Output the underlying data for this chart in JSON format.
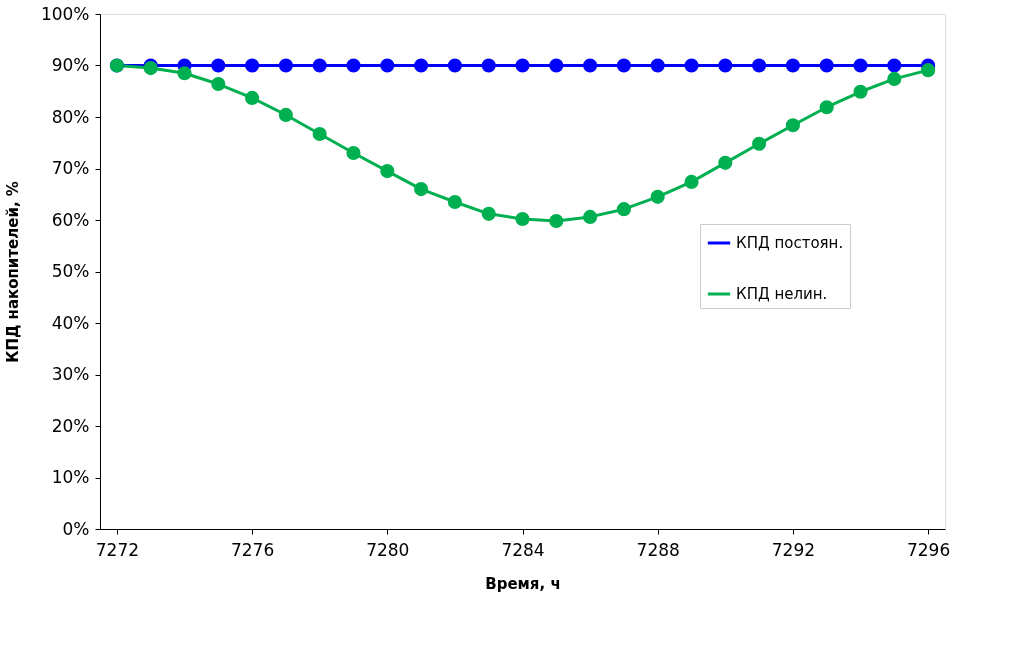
{
  "chart_data": {
    "type": "line",
    "xlabel": "Время, ч",
    "ylabel": "КПД накопителей, %",
    "x": [
      7272,
      7273,
      7274,
      7275,
      7276,
      7277,
      7278,
      7279,
      7280,
      7281,
      7282,
      7283,
      7284,
      7285,
      7286,
      7287,
      7288,
      7289,
      7290,
      7291,
      7292,
      7293,
      7294,
      7295,
      7296
    ],
    "series": [
      {
        "name": "КПД постоян.",
        "color": "#0000ff",
        "values": [
          90,
          90,
          90,
          90,
          90,
          90,
          90,
          90,
          90,
          90,
          90,
          90,
          90,
          90,
          90,
          90,
          90,
          90,
          90,
          90,
          90,
          90,
          90,
          90,
          90
        ]
      },
      {
        "name": "КПД нелин.",
        "color": "#00b050",
        "values": [
          90,
          89.5,
          88.5,
          86.4,
          83.7,
          80.4,
          76.7,
          73,
          69.5,
          66,
          63.5,
          61.2,
          60.2,
          59.8,
          60.6,
          62.1,
          64.5,
          67.4,
          71.1,
          74.8,
          78.4,
          81.9,
          84.9,
          87.4,
          89.1
        ]
      }
    ],
    "xlim": [
      7271.5,
      7296.5
    ],
    "xticks": [
      7272,
      7276,
      7280,
      7284,
      7288,
      7292,
      7296
    ],
    "ylim": [
      0,
      100
    ],
    "yticks": [
      {
        "value": 0,
        "label": "0%"
      },
      {
        "value": 10,
        "label": "10%"
      },
      {
        "value": 20,
        "label": "20%"
      },
      {
        "value": 30,
        "label": "30%"
      },
      {
        "value": 40,
        "label": "40%"
      },
      {
        "value": 50,
        "label": "50%"
      },
      {
        "value": 60,
        "label": "60%"
      },
      {
        "value": 70,
        "label": "70%"
      },
      {
        "value": 80,
        "label": "80%"
      },
      {
        "value": 90,
        "label": "90%"
      },
      {
        "value": 100,
        "label": "100%"
      }
    ],
    "marker": "circle",
    "line_style": "solid",
    "grid": false,
    "legend": "right"
  }
}
